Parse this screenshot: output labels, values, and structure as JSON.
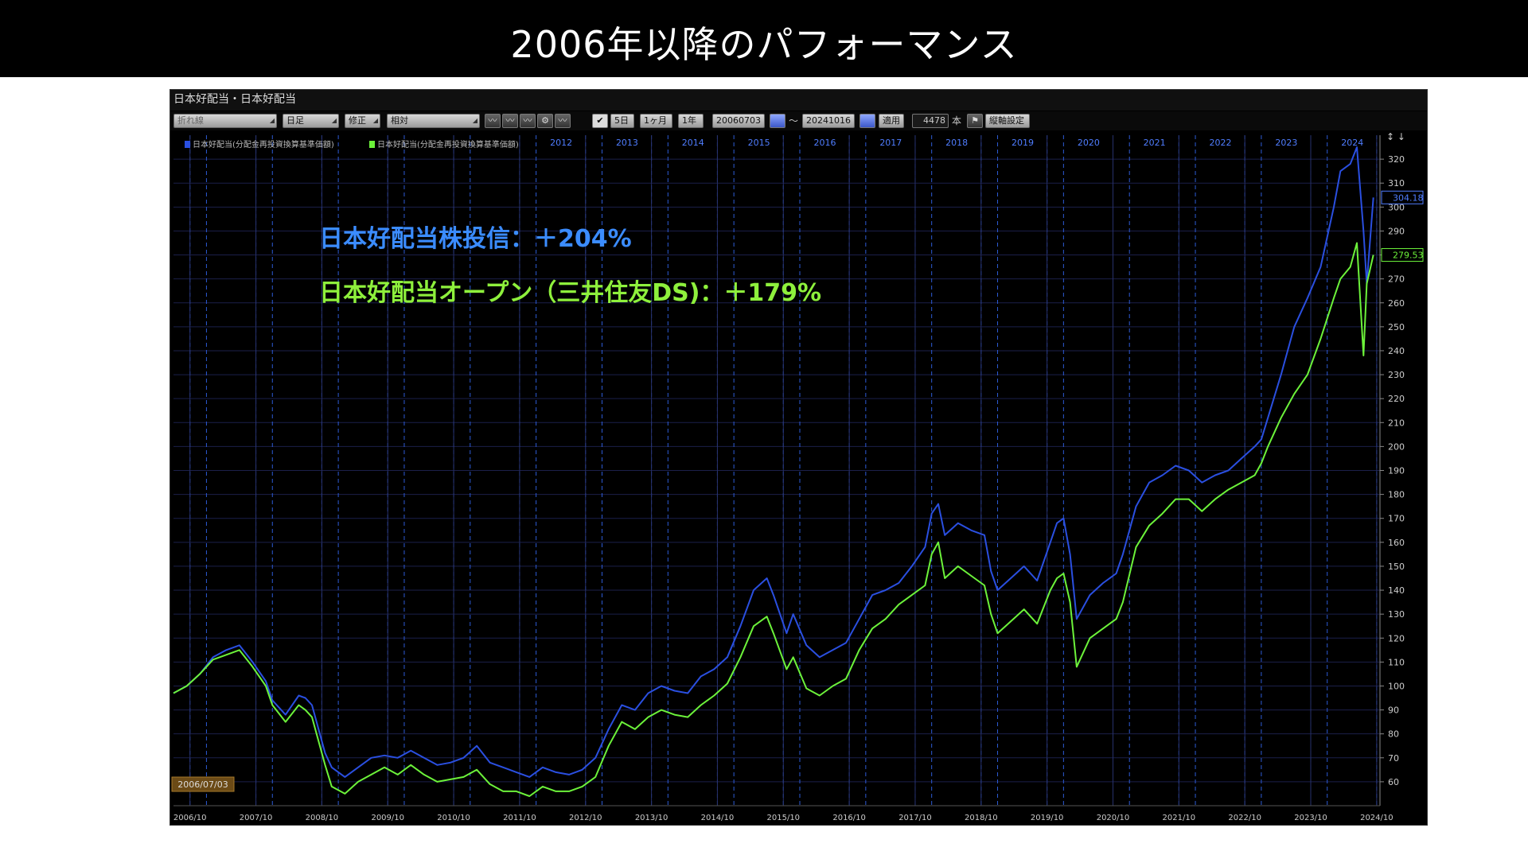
{
  "banner": {
    "title": "2006年以降のパフォーマンス"
  },
  "window": {
    "title": "日本好配当・日本好配当"
  },
  "toolbar": {
    "chart_type": "折れ線",
    "period": "日足",
    "adjust": "修正",
    "scale": "相対",
    "btn_5d": "5日",
    "btn_1m": "1ヶ月",
    "btn_1y": "1年",
    "date_from": "20060703",
    "tilde": "〜",
    "date_to": "20241016",
    "apply": "適用",
    "bars": "4478",
    "bars_unit": "本",
    "axis_settings": "縦軸設定",
    "check": "✔"
  },
  "annotations": {
    "line1": "日本好配当株投信：＋204%",
    "line2": "日本好配当オープン（三井住友DS)：＋179%"
  },
  "colors": {
    "blue": "#2a4fe0",
    "green": "#6cf23a",
    "annot_blue": "#3b8cff",
    "annot_green": "#8ef03c"
  },
  "chart_data": {
    "type": "line",
    "legend": [
      "日本好配当(分配金再投資換算基準価額)",
      "日本好配当(分配金再投資換算基準価額)"
    ],
    "x_axis_labels": [
      "2006/10",
      "2007/10",
      "2008/10",
      "2009/10",
      "2010/10",
      "2011/10",
      "2012/10",
      "2013/10",
      "2014/10",
      "2015/10",
      "2016/10",
      "2017/10",
      "2018/10",
      "2019/10",
      "2020/10",
      "2021/10",
      "2022/10",
      "2023/10",
      "2024/10"
    ],
    "top_year_labels": [
      "2012",
      "2013",
      "2014",
      "2015",
      "2016",
      "2017",
      "2018",
      "2019",
      "2020",
      "2021",
      "2022",
      "2023",
      "2024"
    ],
    "y_ticks": [
      60,
      70,
      80,
      90,
      100,
      110,
      120,
      130,
      140,
      150,
      160,
      170,
      180,
      190,
      200,
      210,
      220,
      230,
      240,
      250,
      260,
      270,
      280,
      290,
      300,
      310,
      320
    ],
    "ylim": [
      50,
      330
    ],
    "xlim": [
      2006.5,
      2024.8
    ],
    "start_date_label": "2006/07/03",
    "last_values": {
      "blue": "304.18",
      "green": "279.53"
    },
    "series": [
      {
        "color": "#2a4fe0",
        "points": [
          [
            2006.5,
            97
          ],
          [
            2006.7,
            100
          ],
          [
            2006.9,
            105
          ],
          [
            2007.1,
            112
          ],
          [
            2007.3,
            115
          ],
          [
            2007.5,
            117
          ],
          [
            2007.7,
            110
          ],
          [
            2007.9,
            102
          ],
          [
            2008.0,
            94
          ],
          [
            2008.2,
            88
          ],
          [
            2008.4,
            96
          ],
          [
            2008.5,
            95
          ],
          [
            2008.6,
            92
          ],
          [
            2008.8,
            72
          ],
          [
            2008.9,
            66
          ],
          [
            2009.1,
            62
          ],
          [
            2009.3,
            66
          ],
          [
            2009.5,
            70
          ],
          [
            2009.7,
            71
          ],
          [
            2009.9,
            70
          ],
          [
            2010.1,
            73
          ],
          [
            2010.3,
            70
          ],
          [
            2010.5,
            67
          ],
          [
            2010.7,
            68
          ],
          [
            2010.9,
            70
          ],
          [
            2011.1,
            75
          ],
          [
            2011.3,
            68
          ],
          [
            2011.5,
            66
          ],
          [
            2011.7,
            64
          ],
          [
            2011.9,
            62
          ],
          [
            2012.1,
            66
          ],
          [
            2012.3,
            64
          ],
          [
            2012.5,
            63
          ],
          [
            2012.7,
            65
          ],
          [
            2012.9,
            70
          ],
          [
            2013.1,
            82
          ],
          [
            2013.3,
            92
          ],
          [
            2013.5,
            90
          ],
          [
            2013.7,
            97
          ],
          [
            2013.9,
            100
          ],
          [
            2014.1,
            98
          ],
          [
            2014.3,
            97
          ],
          [
            2014.5,
            104
          ],
          [
            2014.7,
            107
          ],
          [
            2014.9,
            112
          ],
          [
            2015.1,
            125
          ],
          [
            2015.3,
            140
          ],
          [
            2015.5,
            145
          ],
          [
            2015.6,
            138
          ],
          [
            2015.8,
            122
          ],
          [
            2015.9,
            130
          ],
          [
            2016.1,
            117
          ],
          [
            2016.3,
            112
          ],
          [
            2016.5,
            115
          ],
          [
            2016.7,
            118
          ],
          [
            2016.9,
            128
          ],
          [
            2017.1,
            138
          ],
          [
            2017.3,
            140
          ],
          [
            2017.5,
            143
          ],
          [
            2017.7,
            150
          ],
          [
            2017.9,
            158
          ],
          [
            2018.0,
            172
          ],
          [
            2018.1,
            176
          ],
          [
            2018.2,
            163
          ],
          [
            2018.4,
            168
          ],
          [
            2018.6,
            165
          ],
          [
            2018.8,
            163
          ],
          [
            2018.9,
            148
          ],
          [
            2019.0,
            140
          ],
          [
            2019.2,
            145
          ],
          [
            2019.4,
            150
          ],
          [
            2019.6,
            144
          ],
          [
            2019.8,
            160
          ],
          [
            2019.9,
            168
          ],
          [
            2020.0,
            170
          ],
          [
            2020.1,
            155
          ],
          [
            2020.2,
            128
          ],
          [
            2020.4,
            138
          ],
          [
            2020.6,
            143
          ],
          [
            2020.8,
            147
          ],
          [
            2020.9,
            155
          ],
          [
            2021.1,
            175
          ],
          [
            2021.3,
            185
          ],
          [
            2021.5,
            188
          ],
          [
            2021.7,
            192
          ],
          [
            2021.9,
            190
          ],
          [
            2022.1,
            185
          ],
          [
            2022.3,
            188
          ],
          [
            2022.5,
            190
          ],
          [
            2022.7,
            195
          ],
          [
            2022.9,
            200
          ],
          [
            2023.0,
            203
          ],
          [
            2023.1,
            212
          ],
          [
            2023.3,
            230
          ],
          [
            2023.5,
            250
          ],
          [
            2023.7,
            262
          ],
          [
            2023.9,
            275
          ],
          [
            2024.1,
            300
          ],
          [
            2024.2,
            315
          ],
          [
            2024.35,
            318
          ],
          [
            2024.45,
            325
          ],
          [
            2024.55,
            290
          ],
          [
            2024.6,
            268
          ],
          [
            2024.7,
            304
          ]
        ]
      },
      {
        "color": "#6cf23a",
        "points": [
          [
            2006.5,
            97
          ],
          [
            2006.7,
            100
          ],
          [
            2006.9,
            105
          ],
          [
            2007.1,
            111
          ],
          [
            2007.3,
            113
          ],
          [
            2007.5,
            115
          ],
          [
            2007.7,
            108
          ],
          [
            2007.9,
            100
          ],
          [
            2008.0,
            92
          ],
          [
            2008.2,
            85
          ],
          [
            2008.4,
            92
          ],
          [
            2008.5,
            90
          ],
          [
            2008.6,
            87
          ],
          [
            2008.8,
            67
          ],
          [
            2008.9,
            58
          ],
          [
            2009.1,
            55
          ],
          [
            2009.3,
            60
          ],
          [
            2009.5,
            63
          ],
          [
            2009.7,
            66
          ],
          [
            2009.9,
            63
          ],
          [
            2010.1,
            67
          ],
          [
            2010.3,
            63
          ],
          [
            2010.5,
            60
          ],
          [
            2010.7,
            61
          ],
          [
            2010.9,
            62
          ],
          [
            2011.1,
            65
          ],
          [
            2011.3,
            59
          ],
          [
            2011.5,
            56
          ],
          [
            2011.7,
            56
          ],
          [
            2011.9,
            54
          ],
          [
            2012.1,
            58
          ],
          [
            2012.3,
            56
          ],
          [
            2012.5,
            56
          ],
          [
            2012.7,
            58
          ],
          [
            2012.9,
            62
          ],
          [
            2013.1,
            75
          ],
          [
            2013.3,
            85
          ],
          [
            2013.5,
            82
          ],
          [
            2013.7,
            87
          ],
          [
            2013.9,
            90
          ],
          [
            2014.1,
            88
          ],
          [
            2014.3,
            87
          ],
          [
            2014.5,
            92
          ],
          [
            2014.7,
            96
          ],
          [
            2014.9,
            101
          ],
          [
            2015.1,
            112
          ],
          [
            2015.3,
            125
          ],
          [
            2015.5,
            129
          ],
          [
            2015.6,
            122
          ],
          [
            2015.8,
            107
          ],
          [
            2015.9,
            112
          ],
          [
            2016.1,
            99
          ],
          [
            2016.3,
            96
          ],
          [
            2016.5,
            100
          ],
          [
            2016.7,
            103
          ],
          [
            2016.9,
            115
          ],
          [
            2017.1,
            124
          ],
          [
            2017.3,
            128
          ],
          [
            2017.5,
            134
          ],
          [
            2017.7,
            138
          ],
          [
            2017.9,
            142
          ],
          [
            2018.0,
            155
          ],
          [
            2018.1,
            160
          ],
          [
            2018.2,
            145
          ],
          [
            2018.4,
            150
          ],
          [
            2018.6,
            146
          ],
          [
            2018.8,
            142
          ],
          [
            2018.9,
            130
          ],
          [
            2019.0,
            122
          ],
          [
            2019.2,
            127
          ],
          [
            2019.4,
            132
          ],
          [
            2019.6,
            126
          ],
          [
            2019.8,
            140
          ],
          [
            2019.9,
            145
          ],
          [
            2020.0,
            147
          ],
          [
            2020.1,
            135
          ],
          [
            2020.2,
            108
          ],
          [
            2020.4,
            120
          ],
          [
            2020.6,
            124
          ],
          [
            2020.8,
            128
          ],
          [
            2020.9,
            135
          ],
          [
            2021.1,
            158
          ],
          [
            2021.3,
            167
          ],
          [
            2021.5,
            172
          ],
          [
            2021.7,
            178
          ],
          [
            2021.9,
            178
          ],
          [
            2022.1,
            173
          ],
          [
            2022.3,
            178
          ],
          [
            2022.5,
            182
          ],
          [
            2022.7,
            185
          ],
          [
            2022.9,
            188
          ],
          [
            2023.0,
            193
          ],
          [
            2023.1,
            200
          ],
          [
            2023.3,
            212
          ],
          [
            2023.5,
            222
          ],
          [
            2023.7,
            230
          ],
          [
            2023.9,
            245
          ],
          [
            2024.1,
            262
          ],
          [
            2024.2,
            270
          ],
          [
            2024.35,
            275
          ],
          [
            2024.45,
            285
          ],
          [
            2024.55,
            238
          ],
          [
            2024.6,
            268
          ],
          [
            2024.7,
            280
          ]
        ]
      }
    ]
  }
}
